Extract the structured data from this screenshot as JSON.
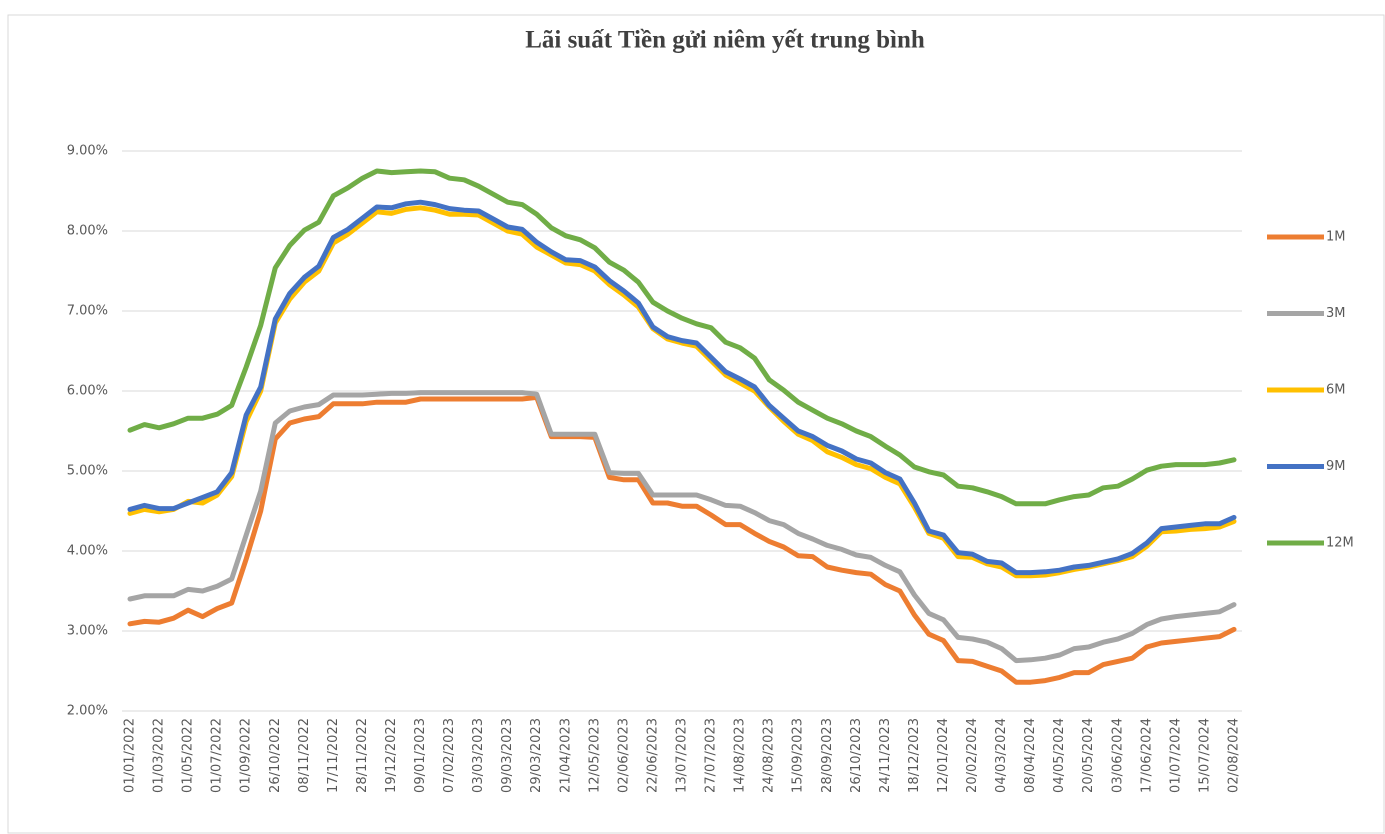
{
  "chart_data": {
    "type": "line",
    "title": "Lãi suất Tiền gửi niêm yết trung bình",
    "categories": [
      "01/01/2022",
      null,
      "01/03/2022",
      null,
      "01/05/2022",
      null,
      "01/07/2022",
      null,
      "01/09/2022",
      null,
      "26/10/2022",
      null,
      "08/11/2022",
      null,
      "17/11/2022",
      null,
      "28/11/2022",
      null,
      "19/12/2022",
      null,
      "09/01/2023",
      null,
      "07/02/2023",
      null,
      "03/03/2023",
      null,
      "09/03/2023",
      null,
      "29/03/2023",
      null,
      "21/04/2023",
      null,
      "12/05/2023",
      null,
      "02/06/2023",
      null,
      "22/06/2023",
      null,
      "13/07/2023",
      null,
      "27/07/2023",
      null,
      "14/08/2023",
      null,
      "24/08/2023",
      null,
      "15/09/2023",
      null,
      "28/09/2023",
      null,
      "26/10/2023",
      null,
      "24/11/2023",
      null,
      "18/12/2023",
      null,
      "12/01/2024",
      null,
      "20/02/2024",
      null,
      "04/03/2024",
      null,
      "08/04/2024",
      null,
      "04/05/2024",
      null,
      "20/05/2024",
      null,
      "03/06/2024",
      null,
      "17/06/2024",
      null,
      "01/07/2024",
      null,
      "15/07/2024",
      null,
      "02/08/2024"
    ],
    "series": [
      {
        "name": "1M",
        "color": "#ed7d31",
        "values": [
          3.09,
          3.12,
          3.11,
          3.16,
          3.26,
          3.18,
          3.28,
          3.35,
          3.9,
          4.5,
          5.4,
          5.6,
          5.65,
          5.68,
          5.84,
          5.84,
          5.84,
          5.86,
          5.86,
          5.86,
          5.9,
          5.9,
          5.9,
          5.9,
          5.9,
          5.9,
          5.9,
          5.9,
          5.92,
          5.43,
          5.43,
          5.43,
          5.42,
          4.92,
          4.89,
          4.89,
          4.6,
          4.6,
          4.56,
          4.56,
          4.45,
          4.33,
          4.33,
          4.22,
          4.12,
          4.05,
          3.94,
          3.93,
          3.8,
          3.76,
          3.73,
          3.71,
          3.58,
          3.5,
          3.2,
          2.96,
          2.88,
          2.63,
          2.62,
          2.56,
          2.5,
          2.36,
          2.36,
          2.38,
          2.42,
          2.48,
          2.48,
          2.58,
          2.62,
          2.66,
          2.8,
          2.85,
          2.87,
          2.89,
          2.91,
          2.93,
          3.02
        ]
      },
      {
        "name": "3M",
        "color": "#a5a5a5",
        "values": [
          3.4,
          3.44,
          3.44,
          3.44,
          3.52,
          3.5,
          3.56,
          3.65,
          4.2,
          4.75,
          5.6,
          5.75,
          5.8,
          5.83,
          5.95,
          5.95,
          5.95,
          5.96,
          5.97,
          5.97,
          5.98,
          5.98,
          5.98,
          5.98,
          5.98,
          5.98,
          5.98,
          5.98,
          5.96,
          5.46,
          5.46,
          5.46,
          5.46,
          4.98,
          4.97,
          4.97,
          4.7,
          4.7,
          4.7,
          4.7,
          4.64,
          4.57,
          4.56,
          4.48,
          4.38,
          4.33,
          4.22,
          4.15,
          4.07,
          4.02,
          3.95,
          3.92,
          3.82,
          3.74,
          3.45,
          3.22,
          3.14,
          2.92,
          2.9,
          2.86,
          2.78,
          2.63,
          2.64,
          2.66,
          2.7,
          2.78,
          2.8,
          2.86,
          2.9,
          2.97,
          3.08,
          3.15,
          3.18,
          3.2,
          3.22,
          3.24,
          3.33
        ]
      },
      {
        "name": "6M",
        "color": "#ffc000",
        "values": [
          4.47,
          4.52,
          4.49,
          4.52,
          4.62,
          4.6,
          4.7,
          4.93,
          5.62,
          6.0,
          6.85,
          7.15,
          7.36,
          7.5,
          7.85,
          7.96,
          8.1,
          8.24,
          8.22,
          8.27,
          8.29,
          8.26,
          8.21,
          8.21,
          8.2,
          8.1,
          8.0,
          7.96,
          7.8,
          7.7,
          7.6,
          7.58,
          7.5,
          7.33,
          7.2,
          7.05,
          6.78,
          6.65,
          6.6,
          6.56,
          6.38,
          6.2,
          6.1,
          6.0,
          5.8,
          5.62,
          5.46,
          5.38,
          5.24,
          5.17,
          5.08,
          5.03,
          4.92,
          4.84,
          4.55,
          4.22,
          4.16,
          3.93,
          3.92,
          3.84,
          3.8,
          3.69,
          3.69,
          3.7,
          3.73,
          3.77,
          3.8,
          3.84,
          3.88,
          3.93,
          4.06,
          4.24,
          4.25,
          4.27,
          4.28,
          4.3,
          4.37
        ]
      },
      {
        "name": "9M",
        "color": "#4472c4",
        "values": [
          4.52,
          4.57,
          4.53,
          4.53,
          4.6,
          4.67,
          4.74,
          4.98,
          5.7,
          6.05,
          6.9,
          7.22,
          7.42,
          7.56,
          7.92,
          8.02,
          8.16,
          8.3,
          8.29,
          8.34,
          8.36,
          8.33,
          8.28,
          8.26,
          8.25,
          8.15,
          8.05,
          8.02,
          7.86,
          7.74,
          7.64,
          7.63,
          7.55,
          7.38,
          7.25,
          7.1,
          6.8,
          6.68,
          6.63,
          6.6,
          6.42,
          6.24,
          6.15,
          6.05,
          5.82,
          5.66,
          5.5,
          5.43,
          5.32,
          5.25,
          5.15,
          5.1,
          4.98,
          4.9,
          4.6,
          4.25,
          4.2,
          3.98,
          3.96,
          3.87,
          3.85,
          3.73,
          3.73,
          3.74,
          3.76,
          3.8,
          3.82,
          3.86,
          3.9,
          3.97,
          4.1,
          4.28,
          4.3,
          4.32,
          4.34,
          4.34,
          4.42
        ]
      },
      {
        "name": "12M",
        "color": "#70ad47",
        "values": [
          5.51,
          5.58,
          5.54,
          5.59,
          5.66,
          5.66,
          5.71,
          5.82,
          6.3,
          6.82,
          7.54,
          7.82,
          8.01,
          8.11,
          8.44,
          8.54,
          8.66,
          8.75,
          8.73,
          8.74,
          8.75,
          8.74,
          8.66,
          8.64,
          8.56,
          8.46,
          8.36,
          8.33,
          8.21,
          8.04,
          7.94,
          7.89,
          7.79,
          7.61,
          7.51,
          7.36,
          7.11,
          7.0,
          6.91,
          6.84,
          6.79,
          6.61,
          6.54,
          6.41,
          6.14,
          6.01,
          5.86,
          5.76,
          5.66,
          5.59,
          5.5,
          5.43,
          5.31,
          5.2,
          5.05,
          4.99,
          4.95,
          4.81,
          4.79,
          4.74,
          4.68,
          4.59,
          4.59,
          4.59,
          4.64,
          4.68,
          4.7,
          4.79,
          4.81,
          4.9,
          5.01,
          5.06,
          5.08,
          5.08,
          5.08,
          5.1,
          5.14
        ]
      }
    ],
    "ylim": [
      2,
      9
    ],
    "yticks": [
      {
        "value": 2,
        "label": "2.00%"
      },
      {
        "value": 3,
        "label": "3.00%"
      },
      {
        "value": 4,
        "label": "4.00%"
      },
      {
        "value": 5,
        "label": "5.00%"
      },
      {
        "value": 6,
        "label": "6.00%"
      },
      {
        "value": 7,
        "label": "7.00%"
      },
      {
        "value": 8,
        "label": "8.00%"
      },
      {
        "value": 9,
        "label": "9.00%"
      }
    ],
    "grid": true,
    "legend": "right"
  }
}
